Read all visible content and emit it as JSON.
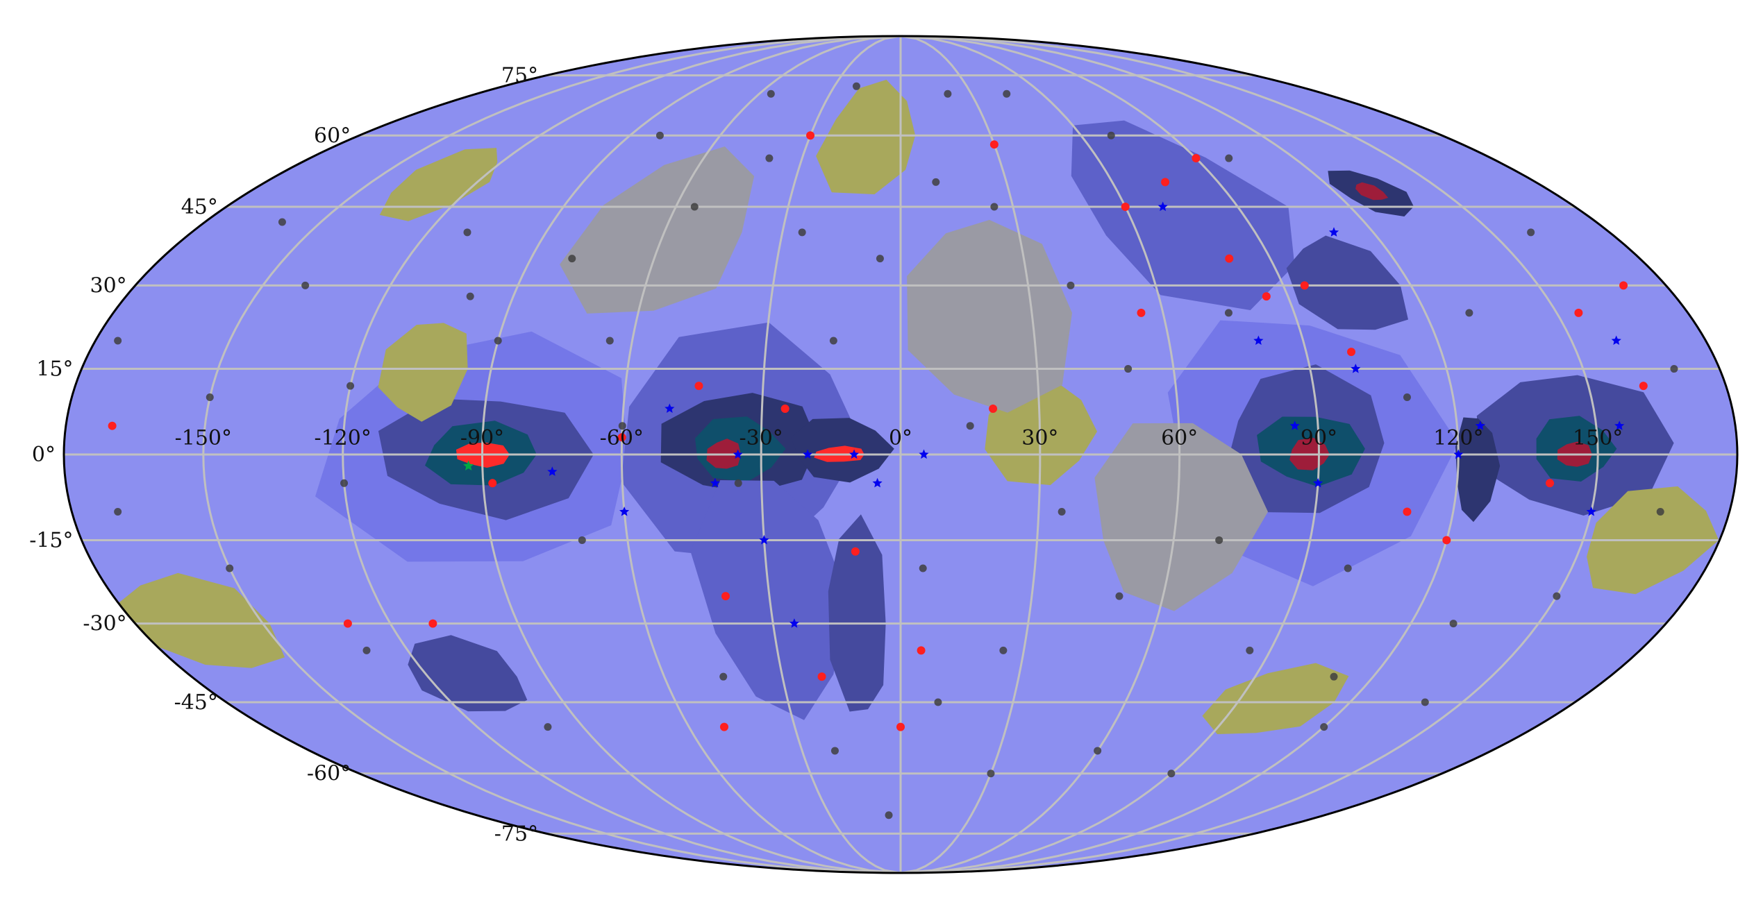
{
  "projection": "mollweide",
  "colors": {
    "background": "#ffffff",
    "base_fill": "#8c8ff0",
    "outline": "#000000",
    "graticule": "#c0c0c0",
    "levels": {
      "low_1": "#7477e8",
      "low_2": "#5d61c9",
      "low_3": "#454a9e",
      "low_4": "#2d3570",
      "low_5": "#0f4f6b",
      "core_1": "#9e1d3a",
      "core_2": "#ff2a2a",
      "mid": "#9a9aa4",
      "high_1": "#a8a85c",
      "high_2": "#c9c92a"
    },
    "marker_gray": "#404040",
    "marker_red": "#ff1f1f",
    "marker_blue": "#0000ee",
    "marker_green": "#00aa44"
  },
  "axes": {
    "lon_labels": [
      "-150°",
      "-120°",
      "-90°",
      "-60°",
      "-30°",
      "0°",
      "30°",
      "60°",
      "90°",
      "120°",
      "150°"
    ],
    "lon_values": [
      -150,
      -120,
      -90,
      -60,
      -30,
      0,
      30,
      60,
      90,
      120,
      150
    ],
    "lat_labels": [
      "-75°",
      "-60°",
      "-45°",
      "-30°",
      "-15°",
      "0°",
      "15°",
      "30°",
      "45°",
      "60°",
      "75°"
    ],
    "lat_values": [
      -75,
      -60,
      -45,
      -30,
      -15,
      0,
      15,
      30,
      45,
      60,
      75
    ],
    "graticule_lon": [
      -150,
      -120,
      -90,
      -60,
      -30,
      0,
      30,
      60,
      90,
      120,
      150
    ],
    "graticule_lat": [
      -75,
      -60,
      -45,
      -30,
      -15,
      0,
      15,
      30,
      45,
      60,
      75
    ]
  },
  "regions": [
    {
      "lon": -90,
      "lat": 0,
      "level": "low_1",
      "rlon": 40,
      "rlat": 22
    },
    {
      "lon": -90,
      "lat": 0,
      "level": "low_3",
      "rlon": 24,
      "rlat": 12
    },
    {
      "lon": -90,
      "lat": 0,
      "level": "low_5",
      "rlon": 14,
      "rlat": 6
    },
    {
      "lon": -90,
      "lat": 0,
      "level": "core_2",
      "rlon": 6,
      "rlat": 2.5
    },
    {
      "lon": -35,
      "lat": 2,
      "level": "low_2",
      "rlon": 30,
      "rlat": 22
    },
    {
      "lon": -35,
      "lat": 2,
      "level": "low_4",
      "rlon": 18,
      "rlat": 10
    },
    {
      "lon": -35,
      "lat": 1,
      "level": "low_5",
      "rlon": 11,
      "rlat": 6
    },
    {
      "lon": -38,
      "lat": 0,
      "level": "core_1",
      "rlon": 4,
      "rlat": 3
    },
    {
      "lon": -13,
      "lat": 1,
      "level": "low_4",
      "rlon": 12,
      "rlat": 6
    },
    {
      "lon": -13,
      "lat": 0,
      "level": "core_2",
      "rlon": 6,
      "rlat": 1.6
    },
    {
      "lon": -30,
      "lat": -25,
      "level": "low_2",
      "rlon": 18,
      "rlat": 24
    },
    {
      "lon": -10,
      "lat": -30,
      "level": "low_3",
      "rlon": 8,
      "rlat": 20
    },
    {
      "lon": 88,
      "lat": 2,
      "level": "low_1",
      "rlon": 32,
      "rlat": 26
    },
    {
      "lon": 88,
      "lat": 2,
      "level": "low_3",
      "rlon": 20,
      "rlat": 14
    },
    {
      "lon": 88,
      "lat": 1,
      "level": "low_5",
      "rlon": 12,
      "rlat": 7
    },
    {
      "lon": 88,
      "lat": 0,
      "level": "core_1",
      "rlon": 5,
      "rlat": 3
    },
    {
      "lon": 145,
      "lat": 2,
      "level": "low_3",
      "rlon": 22,
      "rlat": 14
    },
    {
      "lon": 145,
      "lat": 1,
      "level": "low_5",
      "rlon": 10,
      "rlat": 6
    },
    {
      "lon": 145,
      "lat": 0,
      "level": "core_1",
      "rlon": 4,
      "rlat": 2.5
    },
    {
      "lon": 75,
      "lat": 45,
      "level": "low_2",
      "rlon": 30,
      "rlat": 20
    },
    {
      "lon": 105,
      "lat": 30,
      "level": "low_3",
      "rlon": 14,
      "rlat": 10
    },
    {
      "lon": 130,
      "lat": 48,
      "level": "low_4",
      "rlon": 10,
      "rlat": 5
    },
    {
      "lon": 130,
      "lat": 48,
      "level": "core_1",
      "rlon": 4,
      "rlat": 2
    },
    {
      "lon": 124,
      "lat": -2,
      "level": "low_4",
      "rlon": 5,
      "rlat": 10
    },
    {
      "lon": -110,
      "lat": -40,
      "level": "low_3",
      "rlon": 16,
      "rlat": 8
    },
    {
      "lon": -10,
      "lat": 60,
      "level": "high_2",
      "rlon": 10,
      "rlat": 8
    },
    {
      "lon": -10,
      "lat": 60,
      "level": "high_1",
      "rlon": 18,
      "rlat": 14
    },
    {
      "lon": -105,
      "lat": 15,
      "level": "high_1",
      "rlon": 10,
      "rlat": 10
    },
    {
      "lon": 30,
      "lat": 4,
      "level": "high_1",
      "rlon": 14,
      "rlat": 10
    },
    {
      "lon": 20,
      "lat": 25,
      "level": "mid",
      "rlon": 20,
      "rlat": 20
    },
    {
      "lon": 165,
      "lat": -15,
      "level": "high_1",
      "rlon": 16,
      "rlat": 10
    },
    {
      "lon": -165,
      "lat": -30,
      "level": "high_1",
      "rlon": 18,
      "rlat": 10
    },
    {
      "lon": -130,
      "lat": 50,
      "level": "high_1",
      "rlon": 14,
      "rlat": 8
    },
    {
      "lon": 100,
      "lat": -45,
      "level": "high_1",
      "rlon": 18,
      "rlat": 8
    },
    {
      "lon": 60,
      "lat": -10,
      "level": "mid",
      "rlon": 20,
      "rlat": 18
    },
    {
      "lon": -60,
      "lat": 40,
      "level": "mid",
      "rlon": 24,
      "rlat": 18
    }
  ],
  "markers": {
    "gray": [
      [
        -160,
        42
      ],
      [
        -140,
        30
      ],
      [
        -150,
        10
      ],
      [
        -120,
        12
      ],
      [
        -110,
        40
      ],
      [
        -100,
        28
      ],
      [
        -80,
        35
      ],
      [
        -65,
        20
      ],
      [
        -55,
        45
      ],
      [
        -40,
        55
      ],
      [
        -25,
        40
      ],
      [
        -15,
        20
      ],
      [
        -5,
        35
      ],
      [
        10,
        50
      ],
      [
        25,
        45
      ],
      [
        40,
        30
      ],
      [
        50,
        15
      ],
      [
        35,
        -10
      ],
      [
        50,
        -25
      ],
      [
        70,
        -15
      ],
      [
        85,
        -35
      ],
      [
        100,
        -20
      ],
      [
        110,
        -40
      ],
      [
        130,
        -30
      ],
      [
        150,
        -25
      ],
      [
        165,
        -10
      ],
      [
        -170,
        -10
      ],
      [
        -150,
        -20
      ],
      [
        -130,
        -35
      ],
      [
        -100,
        -50
      ],
      [
        -70,
        -15
      ],
      [
        -45,
        -40
      ],
      [
        -20,
        -55
      ],
      [
        10,
        -45
      ],
      [
        30,
        -60
      ],
      [
        60,
        -55
      ],
      [
        90,
        -60
      ],
      [
        120,
        -50
      ],
      [
        140,
        -45
      ],
      [
        170,
        15
      ],
      [
        -175,
        20
      ],
      [
        70,
        60
      ],
      [
        20,
        70
      ],
      [
        -20,
        72
      ],
      [
        -80,
        60
      ],
      [
        100,
        55
      ],
      [
        130,
        25
      ],
      [
        110,
        10
      ],
      [
        75,
        25
      ],
      [
        -35,
        -5
      ],
      [
        -60,
        5
      ],
      [
        15,
        5
      ],
      [
        -120,
        -5
      ],
      [
        -90,
        20
      ],
      [
        5,
        -20
      ],
      [
        25,
        -35
      ],
      [
        -5,
        -70
      ],
      [
        45,
        70
      ],
      [
        -55,
        70
      ],
      [
        160,
        40
      ]
    ],
    "red": [
      [
        -88,
        -5
      ],
      [
        -60,
        3
      ],
      [
        -44,
        12
      ],
      [
        -25,
        8
      ],
      [
        -10,
        -17
      ],
      [
        -20,
        -40
      ],
      [
        -40,
        -25
      ],
      [
        5,
        -35
      ],
      [
        20,
        8
      ],
      [
        55,
        25
      ],
      [
        60,
        45
      ],
      [
        75,
        50
      ],
      [
        80,
        35
      ],
      [
        85,
        28
      ],
      [
        95,
        30
      ],
      [
        100,
        18
      ],
      [
        110,
        -10
      ],
      [
        120,
        -15
      ],
      [
        140,
        -5
      ],
      [
        155,
        25
      ],
      [
        162,
        12
      ],
      [
        -170,
        5
      ],
      [
        -130,
        -30
      ],
      [
        -110,
        -30
      ],
      [
        -50,
        -50
      ],
      [
        0,
        -50
      ],
      [
        -30,
        60
      ],
      [
        30,
        58
      ],
      [
        90,
        55
      ],
      [
        170,
        30
      ]
    ],
    "blue": [
      [
        -75,
        -3
      ],
      [
        -60,
        -10
      ],
      [
        -40,
        -5
      ],
      [
        -35,
        0
      ],
      [
        -20,
        0
      ],
      [
        -10,
        0
      ],
      [
        -5,
        -5
      ],
      [
        5,
        0
      ],
      [
        -50,
        8
      ],
      [
        -30,
        -15
      ],
      [
        -25,
        -30
      ],
      [
        70,
        45
      ],
      [
        80,
        20
      ],
      [
        85,
        5
      ],
      [
        90,
        -5
      ],
      [
        100,
        15
      ],
      [
        110,
        40
      ],
      [
        120,
        0
      ],
      [
        125,
        5
      ],
      [
        150,
        -10
      ],
      [
        155,
        5
      ],
      [
        160,
        20
      ]
    ],
    "green": [
      [
        -93,
        -2
      ]
    ]
  }
}
